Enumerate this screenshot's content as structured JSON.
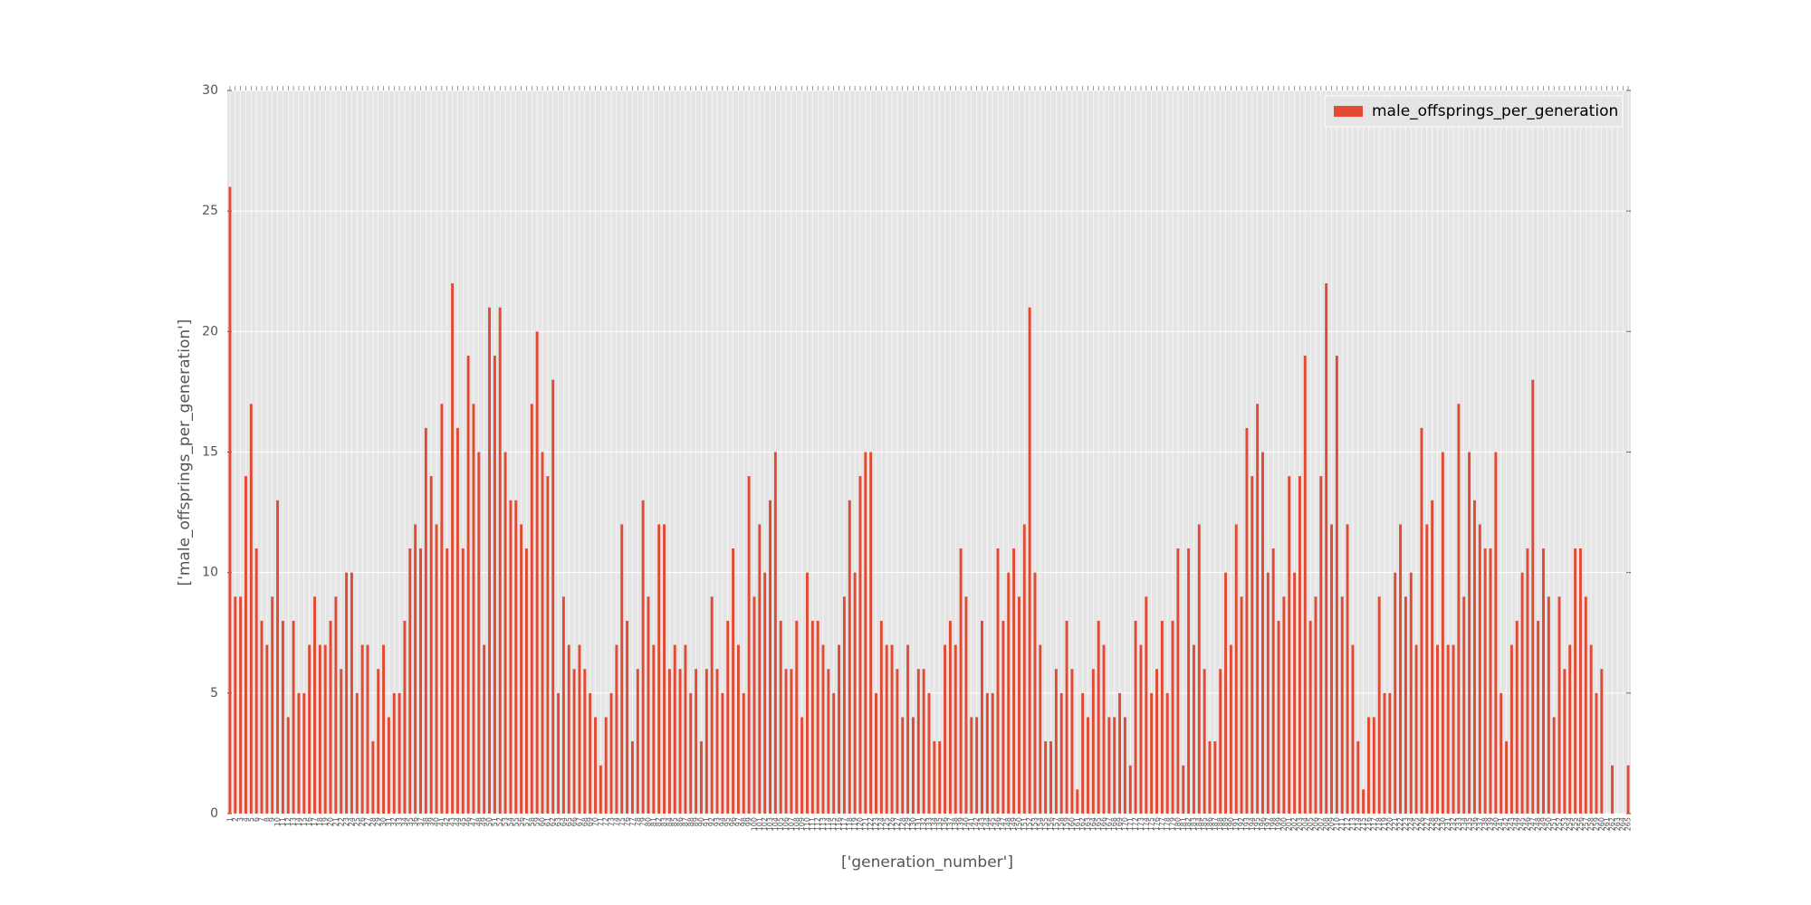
{
  "chart_data": {
    "type": "bar",
    "y_label": "['male_offsprings_per_generation']",
    "x_label": "['generation_number']",
    "color": "#e24a33",
    "grid": true,
    "legend": "upper right",
    "ylim": [
      0,
      30
    ],
    "yticks": [
      0,
      5,
      10,
      15,
      20,
      25,
      30
    ],
    "categories": [
      1,
      2,
      3,
      4,
      5,
      6,
      7,
      8,
      9,
      10,
      11,
      12,
      13,
      14,
      15,
      16,
      17,
      18,
      19,
      20,
      21,
      22,
      23,
      24,
      25,
      26,
      27,
      28,
      29,
      30,
      31,
      32,
      33,
      34,
      35,
      36,
      37,
      38,
      39,
      40,
      41,
      42,
      43,
      44,
      45,
      46,
      47,
      48,
      49,
      50,
      51,
      52,
      53,
      54,
      55,
      56,
      57,
      58,
      59,
      60,
      61,
      62,
      63,
      64,
      65,
      66,
      67,
      68,
      69,
      70,
      71,
      72,
      73,
      74,
      75,
      76,
      77,
      78,
      79,
      80,
      81,
      82,
      83,
      84,
      85,
      86,
      87,
      88,
      89,
      90,
      91,
      92,
      93,
      94,
      95,
      96,
      97,
      98,
      99,
      100,
      101,
      102,
      103,
      104,
      105,
      106,
      107,
      108,
      109,
      110,
      111,
      112,
      113,
      114,
      115,
      116,
      117,
      118,
      119,
      120,
      121,
      122,
      123,
      124,
      125,
      126,
      127,
      128,
      129,
      130,
      131,
      132,
      133,
      134,
      135,
      136,
      137,
      138,
      139,
      140,
      141,
      142,
      143,
      144,
      145,
      146,
      147,
      148,
      149,
      150,
      151,
      152,
      153,
      154,
      155,
      156,
      157,
      158,
      159,
      160,
      161,
      162,
      163,
      164,
      165,
      166,
      167,
      168,
      169,
      170,
      171,
      172,
      173,
      174,
      175,
      176,
      177,
      178,
      179,
      180,
      181,
      182,
      183,
      184,
      185,
      186,
      187,
      188,
      189,
      190,
      191,
      192,
      193,
      194,
      195,
      196,
      197,
      198,
      199,
      200,
      201,
      202,
      203,
      204,
      205,
      206,
      207,
      208,
      209,
      210,
      211,
      212,
      213,
      214,
      215,
      216,
      217,
      218,
      219,
      220,
      221,
      222,
      223,
      224,
      225,
      226,
      227,
      228,
      229,
      230,
      231,
      232,
      233,
      234,
      235,
      236,
      237,
      238,
      239,
      240,
      241,
      242,
      243,
      244,
      245,
      246,
      247,
      248,
      249,
      250,
      251,
      252,
      253,
      254,
      255,
      256,
      257,
      258,
      259,
      260,
      261,
      262,
      263,
      264,
      265
    ],
    "series": [
      {
        "name": "male_offsprings_per_generation",
        "color": "#e24a33",
        "values": [
          26,
          9,
          9,
          14,
          17,
          11,
          8,
          7,
          9,
          13,
          8,
          4,
          8,
          5,
          5,
          7,
          9,
          7,
          7,
          8,
          9,
          6,
          10,
          10,
          5,
          7,
          7,
          3,
          6,
          7,
          4,
          5,
          5,
          8,
          11,
          12,
          11,
          16,
          14,
          12,
          17,
          11,
          22,
          16,
          11,
          19,
          17,
          15,
          7,
          21,
          19,
          21,
          15,
          13,
          13,
          12,
          11,
          17,
          20,
          15,
          14,
          18,
          5,
          9,
          7,
          6,
          7,
          6,
          5,
          4,
          2,
          4,
          5,
          7,
          12,
          8,
          3,
          6,
          13,
          9,
          7,
          12,
          12,
          6,
          7,
          6,
          7,
          5,
          6,
          3,
          6,
          9,
          6,
          5,
          8,
          11,
          7,
          5,
          14,
          9,
          12,
          10,
          13,
          15,
          8,
          6,
          6,
          8,
          4,
          10,
          8,
          8,
          7,
          6,
          5,
          7,
          9,
          13,
          10,
          14,
          15,
          15,
          5,
          8,
          7,
          7,
          6,
          4,
          7,
          4,
          6,
          6,
          5,
          3,
          3,
          7,
          8,
          7,
          11,
          9,
          4,
          4,
          8,
          5,
          5,
          11,
          8,
          10,
          11,
          9,
          12,
          21,
          10,
          7,
          3,
          3,
          6,
          5,
          8,
          6,
          1,
          5,
          4,
          6,
          8,
          7,
          4,
          4,
          5,
          4,
          2,
          8,
          7,
          9,
          5,
          6,
          8,
          5,
          8,
          11,
          2,
          11,
          7,
          12,
          6,
          3,
          3,
          6,
          10,
          7,
          12,
          9,
          16,
          14,
          17,
          15,
          10,
          11,
          8,
          9,
          14,
          10,
          14,
          19,
          8,
          9,
          14,
          22,
          12,
          19,
          9,
          12,
          7,
          3,
          1,
          4,
          4,
          9,
          5,
          5,
          10,
          12,
          9,
          10,
          7,
          16,
          12,
          13,
          7,
          15,
          7,
          7,
          17,
          9,
          15,
          13,
          12,
          11,
          11,
          15,
          5,
          3,
          7,
          8,
          10,
          11,
          18,
          8,
          11,
          9,
          4,
          9,
          6,
          7,
          11,
          11,
          9,
          7,
          5,
          6,
          0,
          2,
          0,
          0,
          2
        ]
      }
    ]
  }
}
